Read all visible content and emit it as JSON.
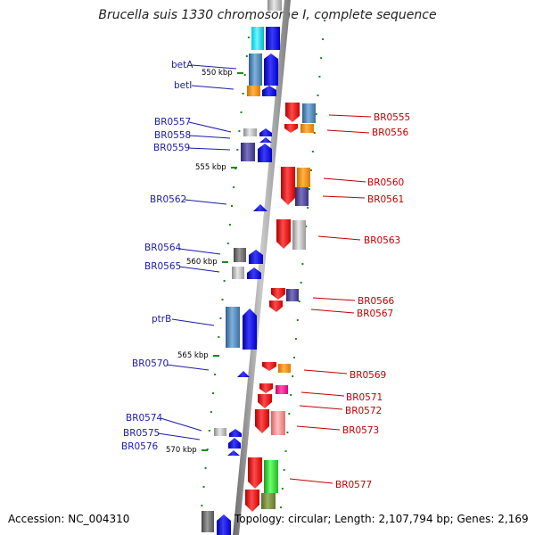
{
  "title": "Brucella suis 1330 chromosome I, complete sequence",
  "footer": {
    "accession": "Accession: NC_004310",
    "topology": "Topology: circular; Length: 2,107,794 bp; Genes: 2,169"
  },
  "scale_marks": [
    "550 kbp",
    "555 kbp",
    "560 kbp",
    "565 kbp",
    "570 kbp"
  ],
  "genes_forward": [
    {
      "name": "betA",
      "color": "#4682b4"
    },
    {
      "name": "betI",
      "color": "#ff8c00"
    },
    {
      "name": "BR0557",
      "color": "#b0b0b0"
    },
    {
      "name": "BR0558",
      "color": "#0000ff"
    },
    {
      "name": "BR0559",
      "color": "#483d8b"
    },
    {
      "name": "BR0562",
      "color": "#0000ff"
    },
    {
      "name": "BR0564",
      "color": "#696969"
    },
    {
      "name": "BR0565",
      "color": "#b0b0b0"
    },
    {
      "name": "ptrB",
      "color": "#4682b4"
    },
    {
      "name": "BR0570",
      "color": "#0000ff"
    },
    {
      "name": "BR0574",
      "color": "#b0b0b0"
    },
    {
      "name": "BR0575",
      "color": "#0000ff"
    },
    {
      "name": "BR0576",
      "color": "#0000ff"
    }
  ],
  "genes_reverse": [
    {
      "name": "BR0555",
      "color": "#4682b4"
    },
    {
      "name": "BR0556",
      "color": "#ff8c00"
    },
    {
      "name": "BR0560",
      "color": "#ff8c00"
    },
    {
      "name": "BR0561",
      "color": "#483d8b"
    },
    {
      "name": "BR0563",
      "color": "#b0b0b0"
    },
    {
      "name": "BR0566",
      "color": "#483d8b"
    },
    {
      "name": "BR0567",
      "color": "#ff0000"
    },
    {
      "name": "BR0569",
      "color": "#ff8c00"
    },
    {
      "name": "BR0571",
      "color": "#ff1493"
    },
    {
      "name": "BR0572",
      "color": "#ff0000"
    },
    {
      "name": "BR0573",
      "color": "#f08080"
    },
    {
      "name": "BR0577",
      "color": "#32cd32"
    }
  ]
}
